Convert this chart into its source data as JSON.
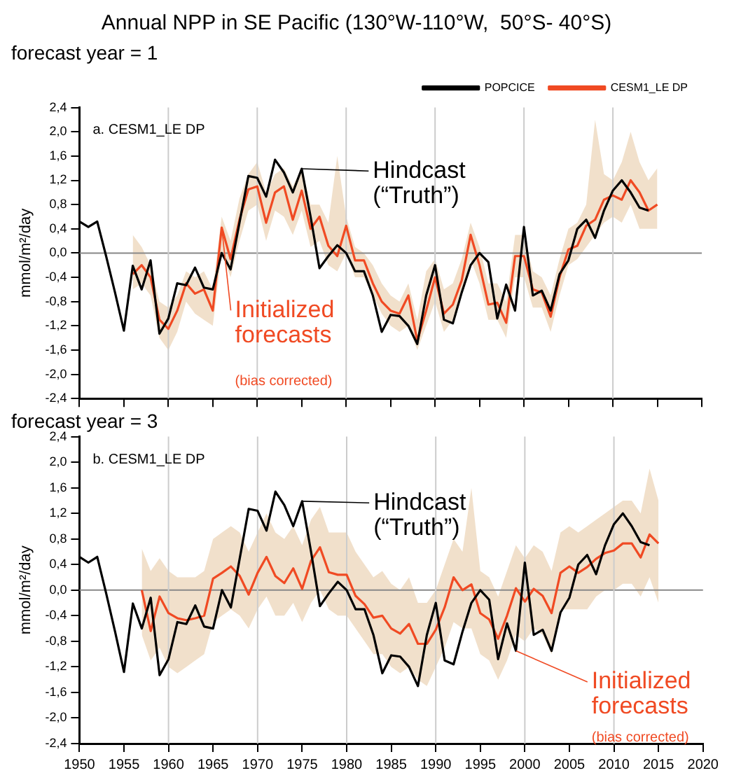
{
  "chart_data": [
    {
      "type": "line",
      "title": "Annual NPP in SE Pacific (130°W-110°W,  50°S- 40°S)",
      "subtitle": "forecast year = 1",
      "ylabel": "mmol/m²/day",
      "annotations": [
        "a. CESM1_LE DP",
        {
          "text": "Hindcast (“Truth”)",
          "x": 1975,
          "y": 1.39
        },
        {
          "text": "Initialized forecasts",
          "x": 1966,
          "y": 0.42
        },
        "(bias corrected)"
      ],
      "x": [
        1950,
        1951,
        1952,
        1953,
        1954,
        1955,
        1956,
        1957,
        1958,
        1959,
        1960,
        1961,
        1962,
        1963,
        1964,
        1965,
        1966,
        1967,
        1968,
        1969,
        1970,
        1971,
        1972,
        1973,
        1974,
        1975,
        1976,
        1977,
        1978,
        1979,
        1980,
        1981,
        1982,
        1983,
        1984,
        1985,
        1986,
        1987,
        1988,
        1989,
        1990,
        1991,
        1992,
        1993,
        1994,
        1995,
        1996,
        1997,
        1998,
        1999,
        2000,
        2001,
        2002,
        2003,
        2004,
        2005,
        2006,
        2007,
        2008,
        2009,
        2010,
        2011,
        2012,
        2013,
        2014,
        2015
      ],
      "series": [
        {
          "name": "POPCICE",
          "color": "#000000",
          "values": [
            0.52,
            0.43,
            0.52,
            -0.05,
            -0.65,
            -1.28,
            -0.21,
            -0.6,
            -0.12,
            -1.33,
            -1.08,
            -0.5,
            -0.53,
            -0.24,
            -0.57,
            -0.6,
            0.0,
            -0.27,
            0.5,
            1.27,
            1.24,
            0.93,
            1.54,
            1.33,
            1.0,
            1.39,
            0.6,
            -0.25,
            -0.05,
            0.13,
            0.0,
            -0.3,
            -0.3,
            -0.7,
            -1.3,
            -1.02,
            -1.04,
            -1.2,
            -1.5,
            -0.7,
            -0.2,
            -1.1,
            -1.16,
            -0.65,
            -0.2,
            0.0,
            -0.15,
            -1.08,
            -0.52,
            -0.95,
            0.43,
            -0.7,
            -0.62,
            -0.95,
            -0.35,
            -0.12,
            0.4,
            0.55,
            0.25,
            0.7,
            1.03,
            1.2,
            1.0,
            0.75,
            0.7,
            null
          ]
        },
        {
          "name": "CESM1_LE DP",
          "color": "#f04a23",
          "values": [
            null,
            null,
            null,
            null,
            null,
            null,
            -0.35,
            -0.2,
            -0.4,
            -1.1,
            -1.25,
            -0.95,
            -0.5,
            -0.67,
            -0.6,
            -0.95,
            0.42,
            -0.1,
            0.55,
            1.05,
            1.1,
            0.5,
            1.0,
            1.1,
            0.55,
            1.03,
            0.4,
            0.6,
            0.12,
            -0.05,
            0.45,
            -0.12,
            -0.12,
            -0.5,
            -0.8,
            -0.95,
            -1.0,
            -0.7,
            -1.45,
            -0.95,
            -0.4,
            -1.0,
            -0.85,
            -0.45,
            0.3,
            -0.2,
            -0.85,
            -0.82,
            -1.15,
            -0.05,
            -0.05,
            -0.6,
            -0.65,
            -1.05,
            -0.4,
            0.06,
            0.12,
            0.45,
            0.55,
            0.88,
            0.95,
            0.88,
            1.2,
            1.0,
            0.7,
            0.8
          ],
          "lower": [
            null,
            null,
            null,
            null,
            null,
            null,
            -0.6,
            -0.5,
            -0.7,
            -1.4,
            -1.6,
            -1.3,
            -0.8,
            -1.0,
            -1.1,
            -1.2,
            0.0,
            -0.4,
            0.2,
            0.7,
            0.8,
            0.2,
            0.7,
            0.6,
            0.3,
            0.7,
            0.1,
            0.2,
            -0.2,
            -0.3,
            0.0,
            -0.4,
            -0.4,
            -0.7,
            -1.0,
            -1.2,
            -1.3,
            -1.2,
            -1.6,
            -1.2,
            -0.8,
            -1.3,
            -1.1,
            -0.7,
            -0.1,
            -0.5,
            -1.1,
            -1.1,
            -1.4,
            -0.4,
            -0.4,
            -0.9,
            -0.9,
            -1.3,
            -0.7,
            -0.2,
            -0.1,
            0.1,
            0.3,
            0.5,
            0.6,
            0.5,
            0.8,
            0.4,
            0.4,
            0.4
          ],
          "upper": [
            null,
            null,
            null,
            null,
            null,
            null,
            0.3,
            0.1,
            -0.2,
            -0.8,
            -0.9,
            -0.7,
            -0.3,
            -0.4,
            -0.3,
            -0.6,
            0.6,
            0.2,
            0.9,
            1.3,
            1.5,
            1.0,
            1.3,
            1.4,
            1.1,
            1.4,
            0.8,
            0.8,
            0.5,
            1.6,
            0.6,
            0.1,
            0.0,
            -0.2,
            -0.5,
            -0.7,
            -0.8,
            -0.5,
            -1.1,
            -0.3,
            -0.1,
            -0.6,
            -0.5,
            -0.1,
            0.5,
            0.1,
            -0.5,
            -0.5,
            -0.8,
            0.3,
            0.3,
            -0.3,
            -0.4,
            -0.7,
            -0.1,
            0.4,
            0.5,
            0.8,
            2.2,
            1.3,
            1.2,
            1.5,
            2.0,
            1.5,
            1.2,
            1.4
          ]
        }
      ],
      "xlim": [
        1950,
        2020
      ],
      "xticks": [
        {
          "value": 1950,
          "label": null
        },
        {
          "value": 1955,
          "label": null
        },
        {
          "value": 1960,
          "label": null
        },
        {
          "value": 1965,
          "label": null
        },
        {
          "value": 1970,
          "label": null
        },
        {
          "value": 1975,
          "label": null
        },
        {
          "value": 1980,
          "label": null
        },
        {
          "value": 1985,
          "label": null
        },
        {
          "value": 1990,
          "label": null
        },
        {
          "value": 1995,
          "label": null
        },
        {
          "value": 2000,
          "label": null
        },
        {
          "value": 2005,
          "label": null
        },
        {
          "value": 2010,
          "label": null
        },
        {
          "value": 2015,
          "label": null
        },
        {
          "value": 2020,
          "label": null
        }
      ],
      "ylim": [
        -2.4,
        2.4
      ],
      "yticks": [
        {
          "value": -2.4,
          "label": "-2,4"
        },
        {
          "value": -2.0,
          "label": "-2,0"
        },
        {
          "value": -1.6,
          "label": "-1,6"
        },
        {
          "value": -1.2,
          "label": "-1,2"
        },
        {
          "value": -0.8,
          "label": "-0,8"
        },
        {
          "value": -0.4,
          "label": "-0,4"
        },
        {
          "value": 0,
          "label": "0,0"
        },
        {
          "value": 0.4,
          "label": "0,4"
        },
        {
          "value": 0.8,
          "label": "0,8"
        },
        {
          "value": 1.2,
          "label": "1,2"
        },
        {
          "value": 1.6,
          "label": "1,6"
        },
        {
          "value": 2.0,
          "label": "2,0"
        },
        {
          "value": 2.4,
          "label": "2,4"
        }
      ],
      "tick_labels": "y",
      "legend": "top right",
      "line_style": "solid",
      "ref_lines": [
        {
          "axis": "y",
          "value": 0,
          "color": "#888888"
        },
        {
          "axis": "x",
          "value": 1960,
          "color": "#cccccc"
        },
        {
          "axis": "x",
          "value": 1970,
          "color": "#cccccc"
        },
        {
          "axis": "x",
          "value": 1980,
          "color": "#cccccc"
        },
        {
          "axis": "x",
          "value": 1990,
          "color": "#cccccc"
        },
        {
          "axis": "x",
          "value": 2000,
          "color": "#cccccc"
        },
        {
          "axis": "x",
          "value": 2010,
          "color": "#cccccc"
        }
      ]
    },
    {
      "type": "line",
      "title": "forecast year = 3",
      "ylabel": "mmol/m²/day",
      "annotations": [
        "b. CESM1_LE DP",
        {
          "text": "Hindcast (“Truth”)",
          "x": 1975,
          "y": 1.39
        },
        {
          "text": "Initialized forecasts",
          "x": 1999,
          "y": -0.95
        },
        "(bias corrected)"
      ],
      "x": [
        1950,
        1951,
        1952,
        1953,
        1954,
        1955,
        1956,
        1957,
        1958,
        1959,
        1960,
        1961,
        1962,
        1963,
        1964,
        1965,
        1966,
        1967,
        1968,
        1969,
        1970,
        1971,
        1972,
        1973,
        1974,
        1975,
        1976,
        1977,
        1978,
        1979,
        1980,
        1981,
        1982,
        1983,
        1984,
        1985,
        1986,
        1987,
        1988,
        1989,
        1990,
        1991,
        1992,
        1993,
        1994,
        1995,
        1996,
        1997,
        1998,
        1999,
        2000,
        2001,
        2002,
        2003,
        2004,
        2005,
        2006,
        2007,
        2008,
        2009,
        2010,
        2011,
        2012,
        2013,
        2014,
        2015
      ],
      "series": [
        {
          "color": "#000000",
          "values": [
            0.52,
            0.43,
            0.52,
            -0.05,
            -0.65,
            -1.28,
            -0.21,
            -0.6,
            -0.12,
            -1.33,
            -1.08,
            -0.5,
            -0.53,
            -0.24,
            -0.57,
            -0.6,
            0.0,
            -0.27,
            0.5,
            1.27,
            1.24,
            0.93,
            1.54,
            1.33,
            1.0,
            1.39,
            0.6,
            -0.25,
            -0.05,
            0.13,
            0.0,
            -0.3,
            -0.3,
            -0.7,
            -1.3,
            -1.02,
            -1.04,
            -1.2,
            -1.5,
            -0.7,
            -0.2,
            -1.1,
            -1.16,
            -0.65,
            -0.2,
            0.0,
            -0.15,
            -1.08,
            -0.52,
            -0.95,
            0.43,
            -0.7,
            -0.62,
            -0.95,
            -0.35,
            -0.12,
            0.4,
            0.55,
            0.25,
            0.7,
            1.03,
            1.2,
            1.0,
            0.75,
            0.7,
            null
          ]
        },
        {
          "color": "#f04a23",
          "values": [
            null,
            null,
            null,
            null,
            null,
            null,
            null,
            0.0,
            -0.64,
            -0.1,
            -0.36,
            -0.44,
            -0.47,
            -0.44,
            -0.4,
            0.18,
            0.27,
            0.37,
            0.22,
            -0.07,
            0.27,
            0.52,
            0.22,
            0.11,
            0.34,
            0.02,
            0.46,
            0.67,
            0.28,
            0.24,
            0.24,
            -0.09,
            -0.22,
            -0.43,
            -0.4,
            -0.6,
            -0.68,
            -0.53,
            -0.84,
            -0.84,
            -0.62,
            -0.27,
            0.2,
            0.0,
            0.09,
            -0.36,
            -0.46,
            -0.76,
            -0.4,
            0.03,
            -0.18,
            0.02,
            -0.09,
            -0.36,
            0.27,
            0.37,
            0.27,
            0.36,
            0.49,
            0.58,
            0.62,
            0.73,
            0.73,
            0.51,
            0.87,
            0.73
          ],
          "lower": [
            null,
            null,
            null,
            null,
            null,
            null,
            null,
            -0.7,
            -1.1,
            -0.9,
            -1.2,
            -1.3,
            -1.2,
            -1.1,
            -1.0,
            -0.5,
            -0.4,
            -0.3,
            -0.4,
            -0.6,
            -0.3,
            -0.1,
            -0.4,
            -0.4,
            -0.2,
            -0.5,
            -0.2,
            0.0,
            -0.3,
            -0.4,
            -0.4,
            -0.6,
            -0.8,
            -1.0,
            -1.0,
            -1.2,
            -1.3,
            -1.2,
            -1.4,
            -1.5,
            -1.2,
            -0.9,
            -0.5,
            -0.6,
            -0.6,
            -1.0,
            -1.1,
            -1.4,
            -1.1,
            -0.7,
            -0.8,
            -0.6,
            -0.7,
            -1.0,
            -0.3,
            -0.3,
            -0.3,
            -0.3,
            -0.1,
            0.0,
            0.0,
            0.1,
            0.1,
            -0.1,
            0.2,
            -0.2
          ],
          "upper": [
            null,
            null,
            null,
            null,
            null,
            null,
            null,
            0.65,
            0.3,
            0.5,
            0.3,
            0.2,
            0.2,
            0.2,
            0.3,
            0.8,
            0.9,
            1.0,
            0.9,
            0.6,
            0.9,
            1.2,
            0.9,
            0.8,
            1.0,
            0.7,
            1.1,
            1.3,
            0.9,
            0.9,
            0.9,
            0.6,
            0.4,
            0.2,
            0.3,
            0.1,
            0.0,
            0.2,
            -0.2,
            -0.2,
            0.0,
            0.4,
            0.8,
            0.6,
            1.6,
            0.3,
            0.2,
            -0.1,
            0.3,
            0.7,
            0.5,
            0.7,
            0.6,
            0.3,
            0.9,
            1.0,
            0.9,
            1.0,
            1.1,
            1.2,
            1.3,
            1.4,
            1.4,
            1.2,
            1.9,
            1.4
          ]
        }
      ],
      "xlim": [
        1950,
        2020
      ],
      "xticks": [
        1950,
        1955,
        1960,
        1965,
        1970,
        1975,
        1980,
        1985,
        1990,
        1995,
        2000,
        2005,
        2010,
        2015,
        2020
      ],
      "ylim": [
        -2.4,
        2.4
      ],
      "yticks": [
        {
          "value": -2.4,
          "label": "-2,4"
        },
        {
          "value": -2.0,
          "label": "-2,0"
        },
        {
          "value": -1.6,
          "label": "-1,6"
        },
        {
          "value": -1.2,
          "label": "-1,2"
        },
        {
          "value": -0.8,
          "label": "-0,8"
        },
        {
          "value": -0.4,
          "label": "-0,4"
        },
        {
          "value": 0,
          "label": "0,0"
        },
        {
          "value": 0.4,
          "label": "0,4"
        },
        {
          "value": 0.8,
          "label": "0,8"
        },
        {
          "value": 1.2,
          "label": "1,2"
        },
        {
          "value": 1.6,
          "label": "1,6"
        },
        {
          "value": 2.0,
          "label": "2,0"
        },
        {
          "value": 2.4,
          "label": "2,4"
        }
      ],
      "line_style": "solid",
      "ref_lines": [
        {
          "axis": "y",
          "value": 0,
          "color": "#888888"
        },
        {
          "axis": "x",
          "value": 1960,
          "color": "#cccccc"
        },
        {
          "axis": "x",
          "value": 1970,
          "color": "#cccccc"
        },
        {
          "axis": "x",
          "value": 1980,
          "color": "#cccccc"
        },
        {
          "axis": "x",
          "value": 1990,
          "color": "#cccccc"
        },
        {
          "axis": "x",
          "value": 2000,
          "color": "#cccccc"
        },
        {
          "axis": "x",
          "value": 2010,
          "color": "#cccccc"
        }
      ]
    }
  ]
}
